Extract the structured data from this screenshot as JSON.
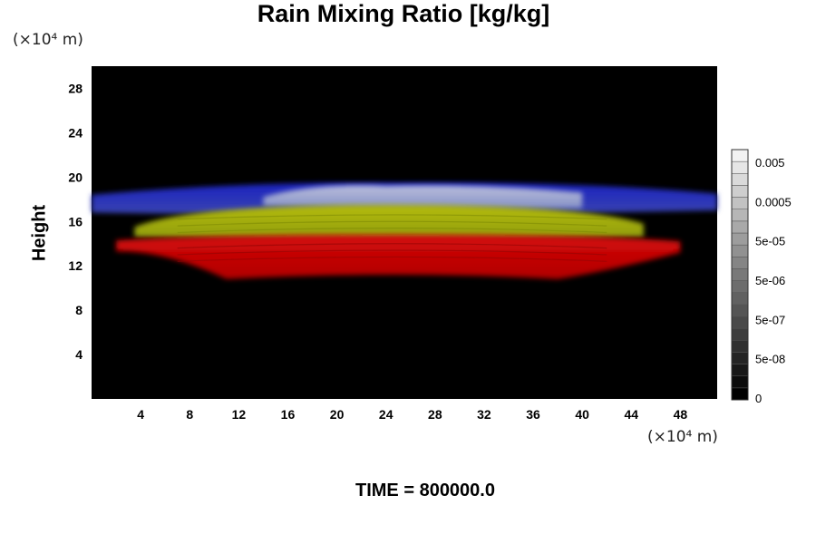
{
  "chart_data": {
    "type": "heatmap",
    "title": "Rain Mixing Ratio [kg/kg]",
    "ylabel": "Height",
    "xlabel": "",
    "x_unit": "(×10⁴ m)",
    "y_unit": "(×10⁴ m)",
    "xlim": [
      0,
      51
    ],
    "ylim": [
      0,
      30
    ],
    "x_ticks": [
      4,
      8,
      12,
      16,
      20,
      24,
      28,
      32,
      36,
      40,
      44,
      48
    ],
    "y_ticks": [
      4,
      8,
      12,
      16,
      20,
      24,
      28
    ],
    "background_color": "#000000",
    "field_layers": [
      {
        "name": "",
        "color": "#1c24c6",
        "x_range": [
          0,
          51
        ],
        "y_range": [
          16.5,
          19.5
        ]
      },
      {
        "name": "",
        "color": "#a3aed2",
        "x_range": [
          14,
          40
        ],
        "y_range": [
          16.5,
          19.5
        ]
      },
      {
        "name": "",
        "color": "#a0ae0a",
        "x_range": [
          3.5,
          45
        ],
        "y_range": [
          14,
          17.5
        ]
      },
      {
        "name": "",
        "color": "#cc0606",
        "x_range": [
          2,
          48
        ],
        "y_range": [
          10.8,
          14.8
        ]
      }
    ],
    "colorbar": {
      "levels": [
        "0",
        "5e-08",
        "5e-07",
        "5e-06",
        "5e-05",
        "0.0005",
        "0.005"
      ],
      "n_bands": 21,
      "color_min": "#000000",
      "color_max": "#f2f2f2"
    }
  },
  "footer": {
    "time_label": "TIME = 800000.0"
  }
}
